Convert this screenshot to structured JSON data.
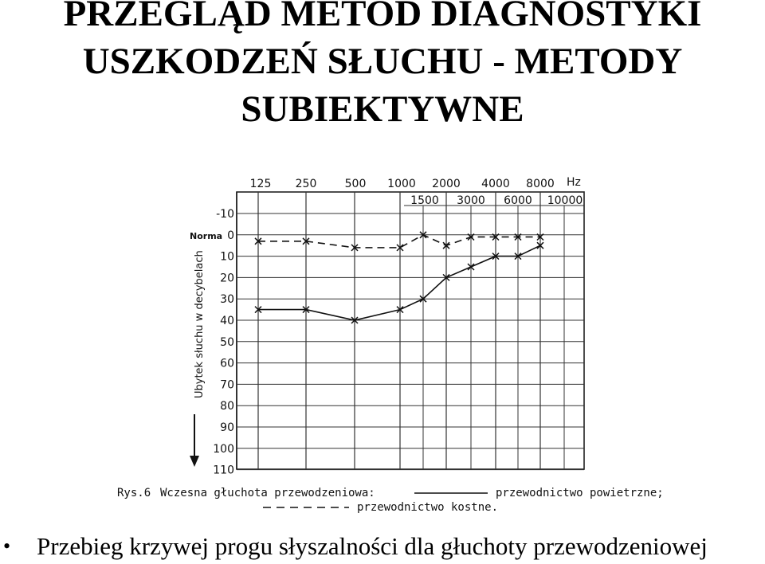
{
  "slide": {
    "title_lines": [
      "PRZEGLĄD METOD DIAGNOSTYKI",
      "USZKODZEŃ SŁUCHU - METODY",
      "SUBIEKTYWNE"
    ],
    "bullet": "Przebieg krzywej progu słyszalności dla głuchoty przewodzeniowej",
    "bullet_icon": "bullet-dot"
  },
  "chart_data": {
    "type": "line",
    "x_ticks_top": [
      "125",
      "250",
      "500",
      "1000",
      "2000",
      "4000",
      "8000"
    ],
    "x_unit": "Hz",
    "x_ticks_intermediate": [
      "1500",
      "3000",
      "6000",
      "10000"
    ],
    "y_ticks": [
      "-10",
      "0",
      "10",
      "20",
      "30",
      "40",
      "50",
      "60",
      "70",
      "80",
      "90",
      "100",
      "110"
    ],
    "y_zero_label": "Norma",
    "ylabel": "Ubytek słuchu w decybelach",
    "ylim": [
      -10,
      110
    ],
    "y_inverted": true,
    "grid": true,
    "series": [
      {
        "name": "przewodnictwo powietrzne",
        "style": "solid",
        "x": [
          125,
          250,
          500,
          1000,
          1500,
          2000,
          3000,
          4000,
          6000,
          8000
        ],
        "values": [
          35,
          35,
          40,
          35,
          30,
          20,
          15,
          10,
          10,
          5
        ]
      },
      {
        "name": "przewodnictwo kostne",
        "style": "dashed",
        "x": [
          125,
          250,
          500,
          1000,
          1500,
          2000,
          3000,
          4000,
          6000,
          8000
        ],
        "values": [
          3,
          3,
          6,
          6,
          0,
          5,
          1,
          1,
          1,
          1
        ]
      }
    ],
    "caption": {
      "label": "Rys.6",
      "text": "Wczesna głuchota przewodzeniowa:",
      "solid_legend": "przewodnictwo powietrzne;",
      "dashed_legend": "przewodnictwo kostne."
    }
  }
}
